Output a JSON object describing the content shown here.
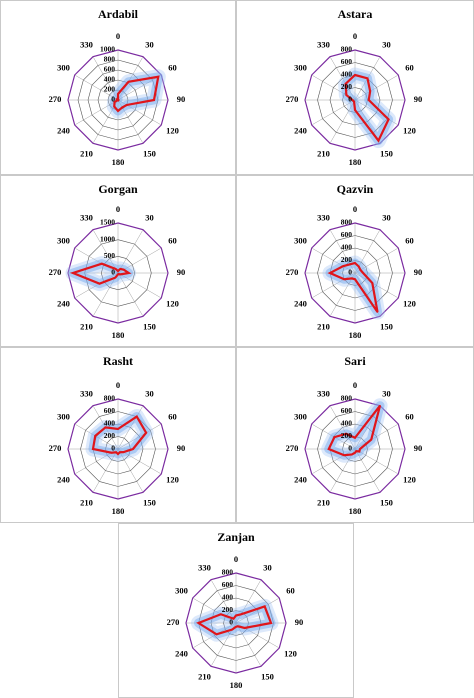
{
  "chart_data": [
    {
      "type": "radar",
      "title": "Ardabil",
      "directions": [
        "0",
        "30",
        "60",
        "90",
        "120",
        "150",
        "180",
        "210",
        "240",
        "270",
        "300",
        "330"
      ],
      "rticks": [
        "0",
        "200",
        "400",
        "600",
        "800",
        "1000"
      ],
      "rmax": 1000,
      "values": [
        120,
        420,
        930,
        720,
        200,
        170,
        220,
        150,
        80,
        0,
        40,
        0
      ]
    },
    {
      "type": "radar",
      "title": "Astara",
      "directions": [
        "0",
        "30",
        "60",
        "90",
        "120",
        "150",
        "180",
        "210",
        "240",
        "270",
        "300",
        "330"
      ],
      "rticks": [
        "0",
        "200",
        "400",
        "600",
        "800"
      ],
      "rmax": 800,
      "values": [
        400,
        400,
        280,
        220,
        620,
        750,
        160,
        30,
        30,
        40,
        160,
        300
      ]
    },
    {
      "type": "radar",
      "title": "Gorgan",
      "directions": [
        "0",
        "30",
        "60",
        "90",
        "120",
        "150",
        "180",
        "210",
        "240",
        "270",
        "300",
        "330"
      ],
      "rticks": [
        "0",
        "500",
        "1000",
        "1500"
      ],
      "rmax": 1500,
      "values": [
        60,
        140,
        200,
        320,
        80,
        40,
        40,
        160,
        640,
        1350,
        560,
        140
      ]
    },
    {
      "type": "radar",
      "title": "Qazvin",
      "directions": [
        "0",
        "30",
        "60",
        "90",
        "120",
        "150",
        "180",
        "210",
        "240",
        "270",
        "300",
        "330"
      ],
      "rticks": [
        "0",
        "200",
        "400",
        "600",
        "800"
      ],
      "rmax": 800,
      "values": [
        160,
        120,
        100,
        130,
        320,
        720,
        100,
        100,
        200,
        400,
        220,
        160
      ]
    },
    {
      "type": "radar",
      "title": "Rasht",
      "directions": [
        "0",
        "30",
        "60",
        "90",
        "120",
        "150",
        "180",
        "210",
        "240",
        "270",
        "300",
        "330"
      ],
      "rticks": [
        "0",
        "200",
        "400",
        "600",
        "800"
      ],
      "rmax": 800,
      "values": [
        320,
        600,
        520,
        240,
        100,
        60,
        80,
        60,
        120,
        400,
        420,
        400
      ]
    },
    {
      "type": "radar",
      "title": "Sari",
      "directions": [
        "0",
        "30",
        "60",
        "90",
        "120",
        "150",
        "180",
        "210",
        "240",
        "270",
        "300",
        "330"
      ],
      "rticks": [
        "0",
        "200",
        "400",
        "600",
        "800"
      ],
      "rmax": 800,
      "values": [
        180,
        860,
        300,
        80,
        80,
        40,
        60,
        100,
        200,
        420,
        380,
        280
      ]
    },
    {
      "type": "radar",
      "title": "Zanjan",
      "directions": [
        "0",
        "30",
        "60",
        "90",
        "120",
        "150",
        "180",
        "210",
        "240",
        "270",
        "300",
        "330"
      ],
      "rticks": [
        "0",
        "200",
        "400",
        "600",
        "800"
      ],
      "rmax": 800,
      "values": [
        120,
        160,
        530,
        560,
        160,
        60,
        60,
        120,
        360,
        600,
        280,
        80
      ]
    }
  ]
}
